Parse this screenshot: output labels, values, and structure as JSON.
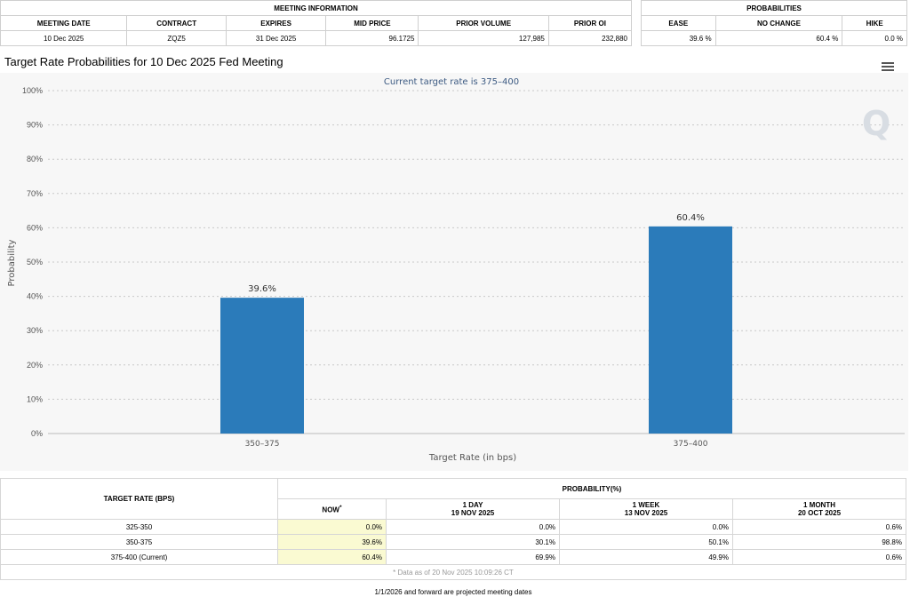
{
  "meeting_info": {
    "section_title": "MEETING INFORMATION",
    "headers": [
      "MEETING DATE",
      "CONTRACT",
      "EXPIRES",
      "MID PRICE",
      "PRIOR VOLUME",
      "PRIOR OI"
    ],
    "row": [
      "10 Dec 2025",
      "ZQZ5",
      "31 Dec 2025",
      "96.1725",
      "127,985",
      "232,880"
    ]
  },
  "probabilities": {
    "section_title": "PROBABILITIES",
    "headers": [
      "EASE",
      "NO CHANGE",
      "HIKE"
    ],
    "row": [
      "39.6 %",
      "60.4 %",
      "0.0 %"
    ]
  },
  "chart_title": "Target Rate Probabilities for 10 Dec 2025 Fed Meeting",
  "chart_data": {
    "type": "bar",
    "subtitle": "Current target rate is 375–400",
    "categories": [
      "350–375",
      "375–400"
    ],
    "values": [
      39.6,
      60.4
    ],
    "data_labels": [
      "39.6%",
      "60.4%"
    ],
    "xlabel": "Target Rate (in bps)",
    "ylabel": "Probability",
    "ylim": [
      0,
      100
    ],
    "yticks": [
      "0%",
      "10%",
      "20%",
      "30%",
      "40%",
      "50%",
      "60%",
      "70%",
      "80%",
      "90%",
      "100%"
    ],
    "grid": true,
    "bar_color": "#2b7bba",
    "watermark": "Q"
  },
  "prob_table": {
    "col0_header": "TARGET RATE (BPS)",
    "group_header": "PROBABILITY(%)",
    "now_header": "NOW",
    "now_marker": "*",
    "day_header": "1 DAY",
    "day_date": "19 NOV 2025",
    "week_header": "1 WEEK",
    "week_date": "13 NOV 2025",
    "month_header": "1 MONTH",
    "month_date": "20 OCT 2025",
    "rows": [
      {
        "rate": "325-350",
        "now": "0.0%",
        "day": "0.0%",
        "week": "0.0%",
        "month": "0.6%"
      },
      {
        "rate": "350-375",
        "now": "39.6%",
        "day": "30.1%",
        "week": "50.1%",
        "month": "98.8%"
      },
      {
        "rate": "375-400 (Current)",
        "now": "60.4%",
        "day": "69.9%",
        "week": "49.9%",
        "month": "0.6%"
      }
    ],
    "footnote": "* Data as of 20 Nov 2025 10:09:26 CT"
  },
  "projected_note": "1/1/2026 and forward are projected meeting dates"
}
